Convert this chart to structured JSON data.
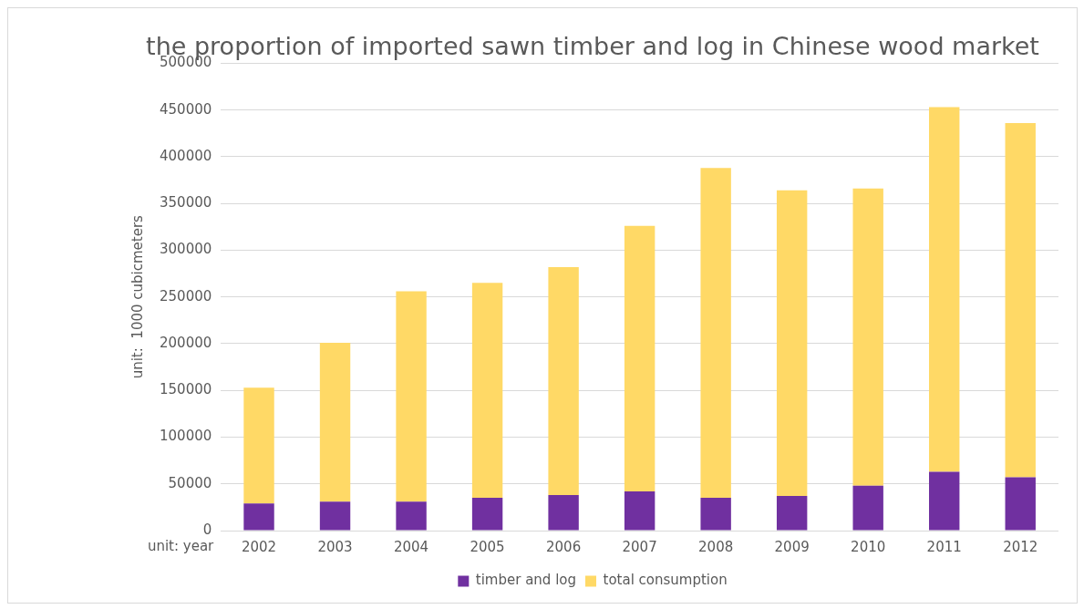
{
  "chart_data": {
    "type": "bar",
    "title": "the proportion of imported sawn timber and log in Chinese wood market",
    "xlabel": "unit: year",
    "ylabel": "unit:  1000 cubicmeters",
    "categories": [
      "2002",
      "2003",
      "2004",
      "2005",
      "2006",
      "2007",
      "2008",
      "2009",
      "2010",
      "2011",
      "2012"
    ],
    "series": [
      {
        "name": "timber and log",
        "color": "#7030a0",
        "values": [
          29000,
          31000,
          31000,
          35000,
          38000,
          42000,
          35000,
          37000,
          48000,
          63000,
          57000
        ]
      },
      {
        "name": "total consumption",
        "color": "#ffd966",
        "values": [
          124000,
          170000,
          225000,
          230000,
          244000,
          284000,
          353000,
          327000,
          318000,
          390000,
          379000
        ]
      }
    ],
    "stacked": true,
    "ylim": [
      0,
      500000
    ],
    "yticks": [
      0,
      50000,
      100000,
      150000,
      200000,
      250000,
      300000,
      350000,
      400000,
      450000,
      500000
    ],
    "grid": "y",
    "legend": "bottom"
  }
}
